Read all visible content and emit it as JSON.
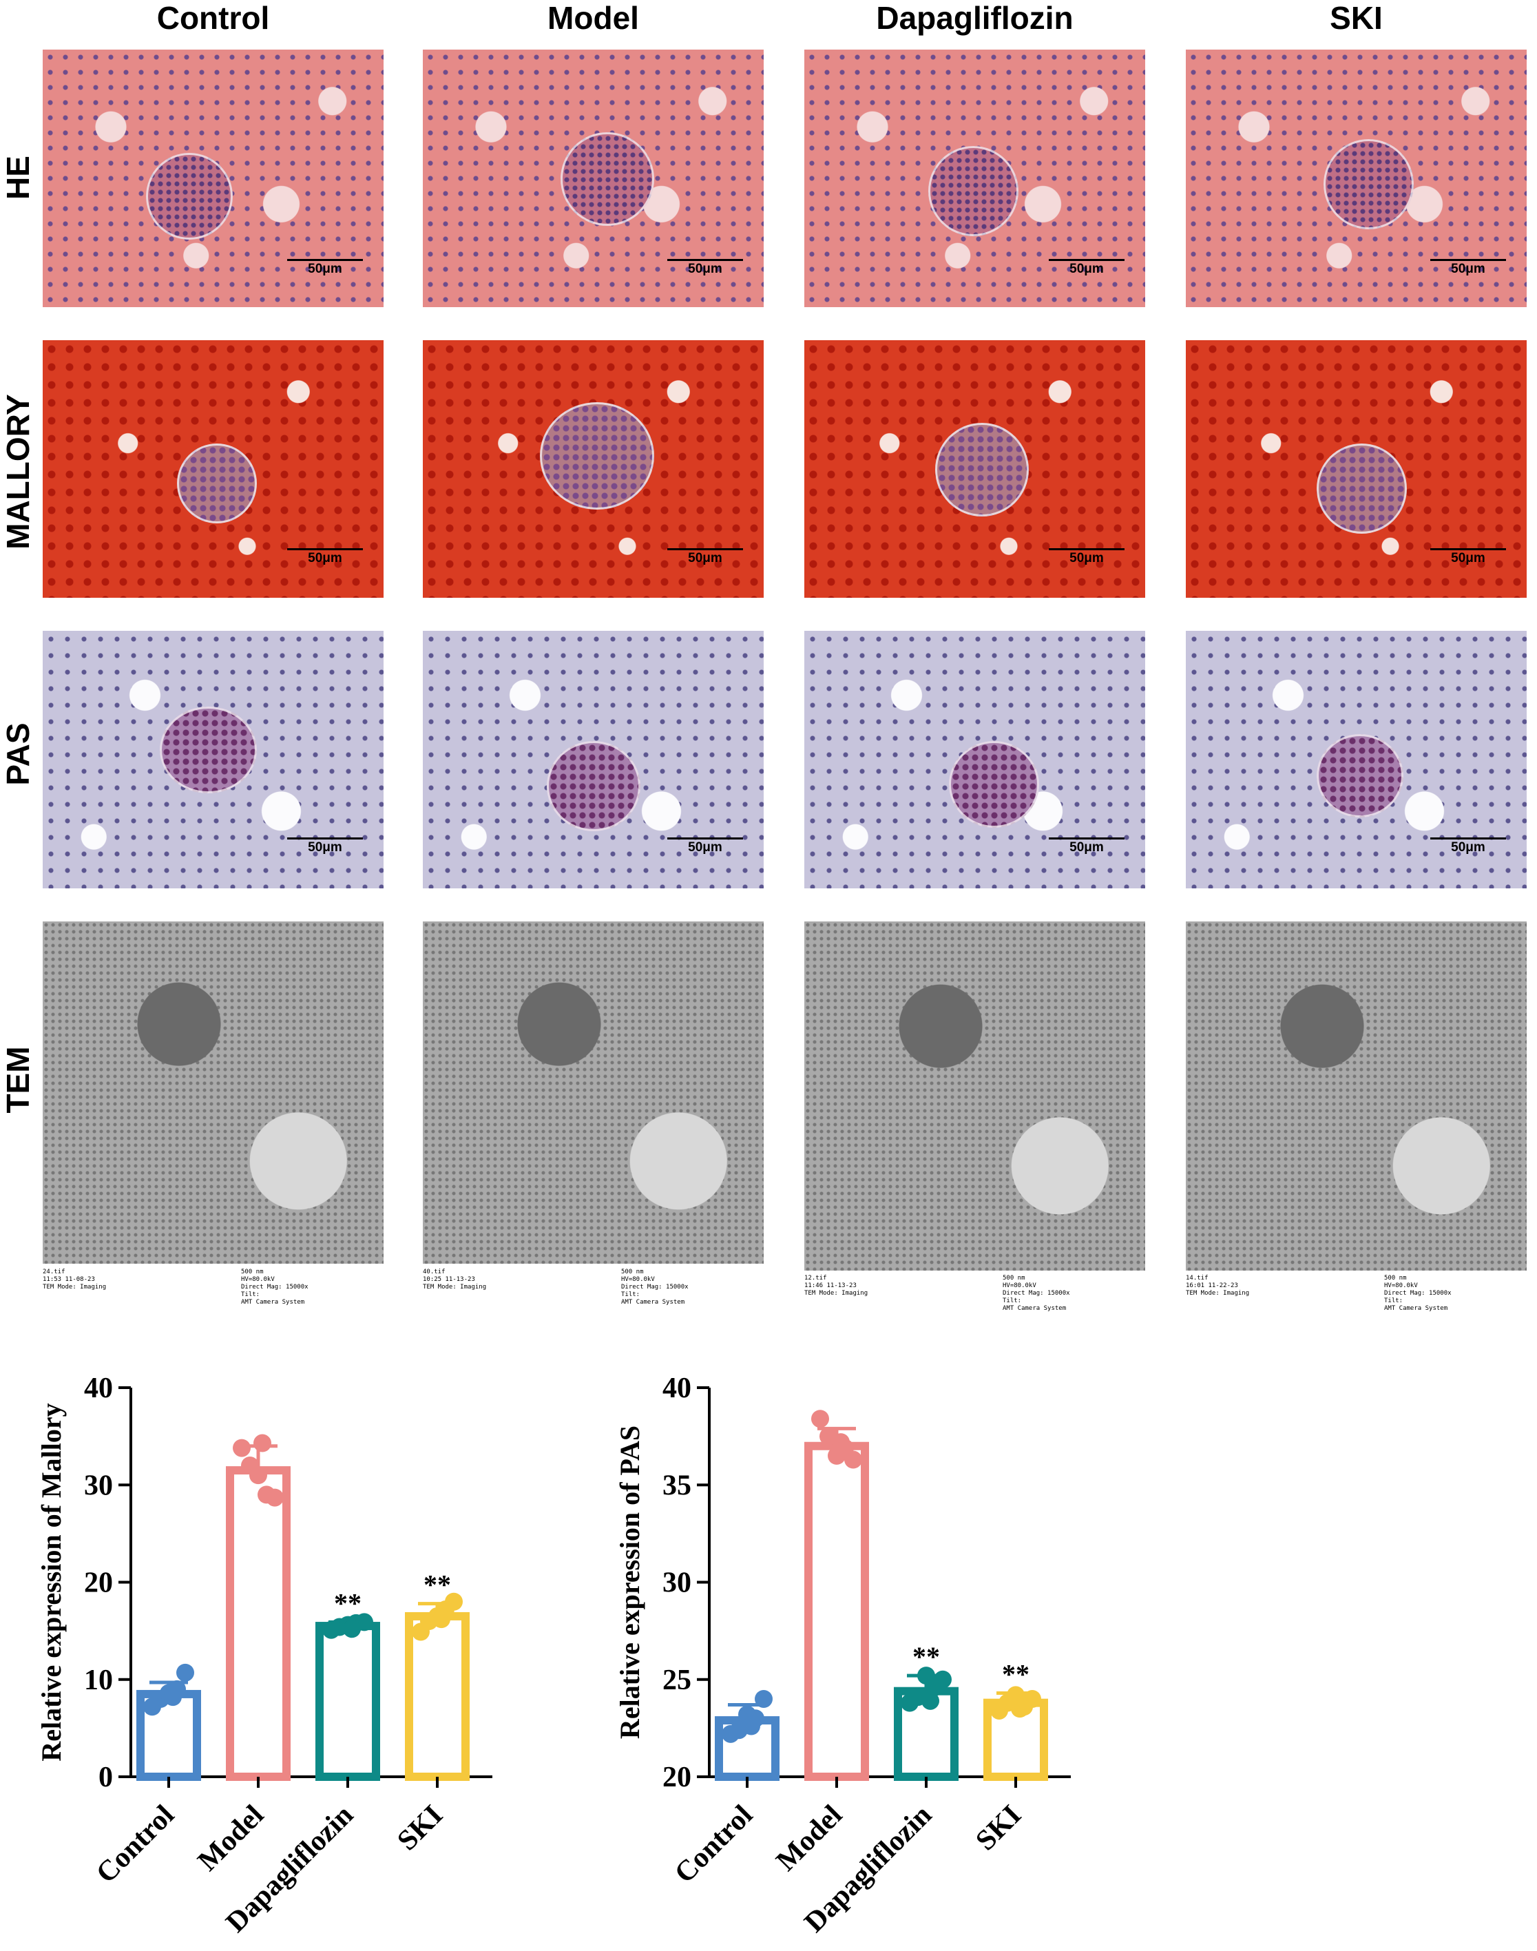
{
  "columns": [
    "Control",
    "Model",
    "Dapagliflozin",
    "SKI"
  ],
  "rows": [
    "HE",
    "MALLORY",
    "PAS",
    "TEM"
  ],
  "scale_bar_label": "50μm",
  "tem_captions": {
    "control": {
      "left": "24.tif\n11:53 11-08-23\nTEM Mode: Imaging",
      "right": "500 nm\nHV=80.0kV\nDirect Mag: 15000x\nTilt:\nAMT Camera System"
    },
    "model": {
      "left": "40.tif\n10:25 11-13-23\nTEM Mode: Imaging",
      "right": "500 nm\nHV=80.0kV\nDirect Mag: 15000x\nTilt:\nAMT Camera System"
    },
    "dapagliflozin": {
      "left": "12.tif\n11:46 11-13-23\nTEM Mode: Imaging",
      "right": "500 nm\nHV=80.0kV\nDirect Mag: 15000x\nTilt:\nAMT Camera System"
    },
    "ski": {
      "left": "14.tif\n16:01 11-22-23\nTEM Mode: Imaging",
      "right": "500 nm\nHV=80.0kV\nDirect Mag: 15000x\nTilt:\nAMT Camera System"
    }
  },
  "chart_data": [
    {
      "type": "bar",
      "title": "",
      "xlabel": "",
      "ylabel": "Relative expression of Mallory",
      "categories": [
        "Control",
        "Model",
        "Dapagliflozin",
        "SKI"
      ],
      "values": [
        8.5,
        31.5,
        15.5,
        16.5
      ],
      "errors": [
        1.2,
        2.5,
        0.4,
        1.3
      ],
      "points": [
        [
          7.2,
          8.0,
          8.6,
          9.0,
          10.7,
          8.2
        ],
        [
          33.8,
          32.0,
          31.0,
          29.0,
          28.7,
          34.3
        ],
        [
          15.1,
          15.4,
          15.6,
          15.8,
          15.9,
          15.2
        ],
        [
          14.9,
          16.0,
          16.5,
          17.2,
          18.0,
          16.2
        ]
      ],
      "significance": [
        "",
        "",
        "**",
        "**"
      ],
      "colors": [
        "#4a86c8",
        "#ec8684",
        "#0e8a87",
        "#f5c83c"
      ],
      "ylim": [
        0,
        40
      ],
      "yticks": [
        0,
        10,
        20,
        30,
        40
      ]
    },
    {
      "type": "bar",
      "title": "",
      "xlabel": "",
      "ylabel": "Relative expression of PAS",
      "categories": [
        "Control",
        "Model",
        "Dapagliflozin",
        "SKI"
      ],
      "values": [
        22.9,
        37.0,
        24.4,
        23.8
      ],
      "errors": [
        0.8,
        0.9,
        0.8,
        0.5
      ],
      "points": [
        [
          22.2,
          22.4,
          23.2,
          23.0,
          24.0,
          22.6
        ],
        [
          38.4,
          37.5,
          36.5,
          36.9,
          36.3,
          37.2
        ],
        [
          23.8,
          24.1,
          25.2,
          24.6,
          25.0,
          23.9
        ],
        [
          23.4,
          23.8,
          24.2,
          23.6,
          24.0,
          23.5
        ]
      ],
      "significance": [
        "",
        "",
        "**",
        "**"
      ],
      "colors": [
        "#4a86c8",
        "#ec8684",
        "#0e8a87",
        "#f5c83c"
      ],
      "ylim": [
        20,
        40
      ],
      "yticks": [
        20,
        25,
        30,
        35,
        40
      ]
    }
  ]
}
